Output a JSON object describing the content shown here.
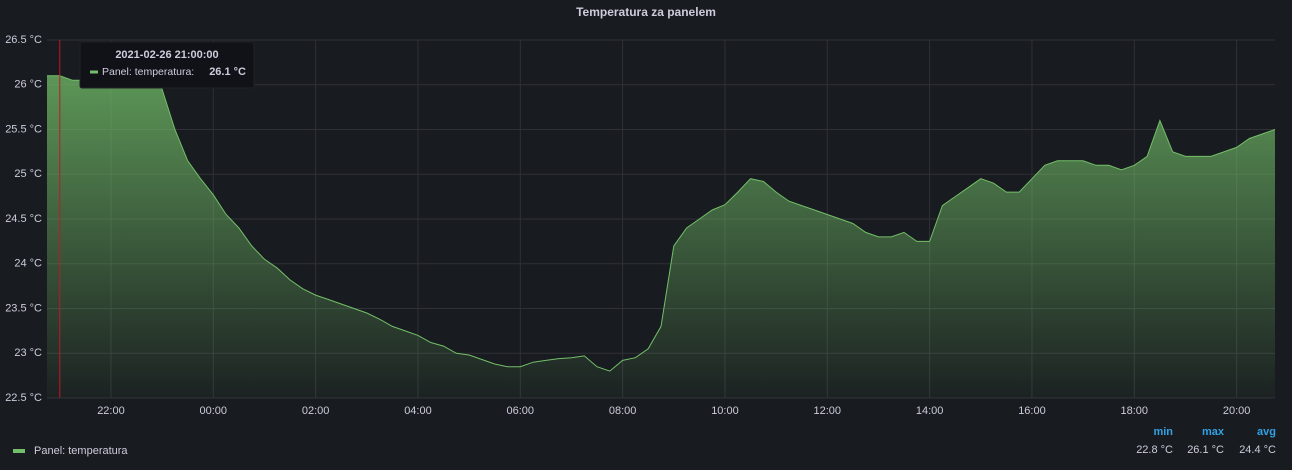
{
  "chart_data": {
    "type": "area",
    "title": "Temperatura za panelem",
    "x": [
      "20:45",
      "21:00",
      "21:15",
      "21:30",
      "21:45",
      "22:00",
      "22:15",
      "22:30",
      "22:45",
      "23:00",
      "23:15",
      "23:30",
      "23:45",
      "00:00",
      "00:15",
      "00:30",
      "00:45",
      "01:00",
      "01:15",
      "01:30",
      "01:45",
      "02:00",
      "02:15",
      "02:30",
      "02:45",
      "03:00",
      "03:15",
      "03:30",
      "03:45",
      "04:00",
      "04:15",
      "04:30",
      "04:45",
      "05:00",
      "05:15",
      "05:30",
      "05:45",
      "06:00",
      "06:15",
      "06:30",
      "06:45",
      "07:00",
      "07:15",
      "07:30",
      "07:45",
      "08:00",
      "08:15",
      "08:30",
      "08:45",
      "09:00",
      "09:15",
      "09:30",
      "09:45",
      "10:00",
      "10:15",
      "10:30",
      "10:45",
      "11:00",
      "11:15",
      "11:30",
      "11:45",
      "12:00",
      "12:15",
      "12:30",
      "12:45",
      "13:00",
      "13:15",
      "13:30",
      "13:45",
      "14:00",
      "14:15",
      "14:30",
      "14:45",
      "15:00",
      "15:15",
      "15:30",
      "15:45",
      "16:00",
      "16:15",
      "16:30",
      "16:45",
      "17:00",
      "17:15",
      "17:30",
      "17:45",
      "18:00",
      "18:15",
      "18:30",
      "18:45",
      "19:00",
      "19:15",
      "19:30",
      "19:45",
      "20:00",
      "20:15",
      "20:30",
      "20:45"
    ],
    "series": [
      {
        "name": "Panel: temperatura",
        "color": "#73bf69",
        "values": [
          26.1,
          26.1,
          26.05,
          26.05,
          26.1,
          26.05,
          26.1,
          26.05,
          26.1,
          25.95,
          25.5,
          25.15,
          24.95,
          24.77,
          24.55,
          24.4,
          24.2,
          24.05,
          23.95,
          23.82,
          23.72,
          23.65,
          23.6,
          23.55,
          23.5,
          23.45,
          23.38,
          23.3,
          23.25,
          23.2,
          23.12,
          23.08,
          23.0,
          22.98,
          22.93,
          22.88,
          22.85,
          22.85,
          22.9,
          22.92,
          22.94,
          22.95,
          22.97,
          22.85,
          22.8,
          22.92,
          22.95,
          23.05,
          23.3,
          24.2,
          24.4,
          24.5,
          24.6,
          24.66,
          24.8,
          24.95,
          24.92,
          24.8,
          24.7,
          24.65,
          24.6,
          24.55,
          24.5,
          24.45,
          24.35,
          24.3,
          24.3,
          24.35,
          24.25,
          24.25,
          24.65,
          24.75,
          24.85,
          24.95,
          24.9,
          24.8,
          24.8,
          24.95,
          25.1,
          25.15,
          25.15,
          25.15,
          25.1,
          25.1,
          25.05,
          25.1,
          25.2,
          25.6,
          25.25,
          25.2,
          25.2,
          25.2,
          25.25,
          25.3,
          25.4,
          25.45,
          25.5
        ]
      }
    ],
    "xticks": [
      "22:00",
      "00:00",
      "02:00",
      "04:00",
      "06:00",
      "08:00",
      "10:00",
      "12:00",
      "14:00",
      "16:00",
      "18:00",
      "20:00"
    ],
    "ylim": [
      22.5,
      26.5
    ],
    "yticks": [
      {
        "value": 22.5,
        "label": "22.5 °C"
      },
      {
        "value": 23,
        "label": "23 °C"
      },
      {
        "value": 23.5,
        "label": "23.5 °C"
      },
      {
        "value": 24,
        "label": "24 °C"
      },
      {
        "value": 24.5,
        "label": "24.5 °C"
      },
      {
        "value": 25,
        "label": "25 °C"
      },
      {
        "value": 25.5,
        "label": "25.5 °C"
      },
      {
        "value": 26,
        "label": "26 °C"
      },
      {
        "value": 26.5,
        "label": "26.5 °C"
      }
    ],
    "grid": true,
    "tooltip": {
      "time": "2021-02-26 21:00:00",
      "series": "Panel: temperatura:",
      "value": {
        "value": 26.1,
        "label": "26.1 °C"
      }
    },
    "stats": [
      {
        "name": "min",
        "value": 22.8,
        "label": "22.8 °C"
      },
      {
        "name": "max",
        "value": 26.1,
        "label": "26.1 °C"
      },
      {
        "name": "avg",
        "value": 24.4,
        "label": "24.4 °C"
      }
    ]
  }
}
